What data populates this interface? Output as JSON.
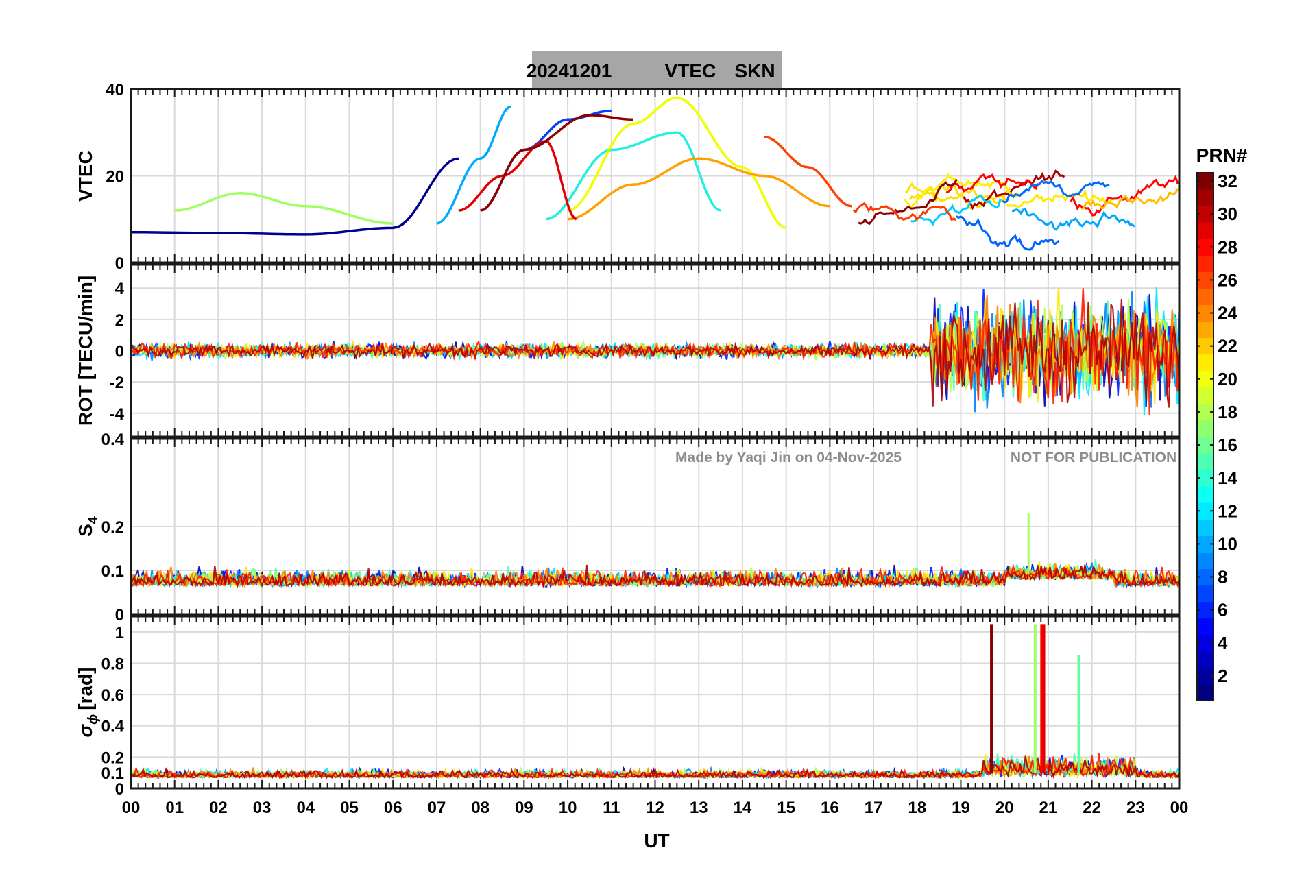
{
  "title": {
    "date": "20241201",
    "product": "VTEC",
    "station": "SKN"
  },
  "watermark": {
    "credit": "Made by Yaqi Jin on 04-Nov-2025",
    "notice": "NOT FOR PUBLICATION"
  },
  "colors": {
    "title_bar": "#a6a6a6",
    "grid": "#d9d9d9",
    "watermark": "#8c8c8c"
  },
  "chart_data": [
    {
      "type": "line",
      "panel": "vtec",
      "ylabel": "VTEC",
      "ylim": [
        0,
        40
      ],
      "yticks": [
        "0",
        "20",
        "40"
      ],
      "ytick_values": [
        0,
        20,
        40
      ],
      "xlim": [
        0,
        24
      ],
      "note": "Multi-satellite VTEC arcs colored by PRN",
      "series": [
        {
          "name": "PRN 2",
          "color": "#00008f",
          "x": [
            0,
            2,
            4,
            6,
            7.5
          ],
          "values": [
            7,
            6.8,
            6.5,
            8,
            24
          ]
        },
        {
          "name": "PRN 6",
          "color": "#0040ff",
          "x": [
            8,
            9,
            10,
            11
          ],
          "values": [
            12,
            26,
            33,
            35
          ]
        },
        {
          "name": "PRN 10",
          "color": "#00aaff",
          "x": [
            7,
            8,
            8.7
          ],
          "values": [
            9,
            24,
            36
          ]
        },
        {
          "name": "PRN 14",
          "color": "#20f0e0",
          "x": [
            9.5,
            11,
            12.5,
            13.5
          ],
          "values": [
            10,
            26,
            30,
            12
          ]
        },
        {
          "name": "PRN 18",
          "color": "#a0ff60",
          "x": [
            1,
            2.5,
            4,
            6
          ],
          "values": [
            12,
            16,
            13,
            9
          ]
        },
        {
          "name": "PRN 20",
          "color": "#f0ff00",
          "x": [
            10,
            11.5,
            12.5,
            14,
            15
          ],
          "values": [
            12,
            32,
            38,
            22,
            8
          ]
        },
        {
          "name": "PRN 23",
          "color": "#ffa000",
          "x": [
            10,
            11.5,
            13,
            14.5,
            16
          ],
          "values": [
            10,
            18,
            24,
            20,
            13
          ]
        },
        {
          "name": "PRN 26",
          "color": "#ff4000",
          "x": [
            14.5,
            15.5,
            16.5
          ],
          "values": [
            29,
            22,
            13
          ]
        },
        {
          "name": "PRN 29",
          "color": "#e00000",
          "x": [
            7.5,
            8.5,
            9.5,
            10.2
          ],
          "values": [
            12,
            20,
            28,
            10
          ]
        },
        {
          "name": "PRN 31",
          "color": "#8f0000",
          "x": [
            8,
            9,
            10.5,
            11.5
          ],
          "values": [
            12,
            26,
            34,
            33
          ]
        }
      ]
    },
    {
      "type": "line",
      "panel": "rot",
      "ylabel": "ROT [TECU/min]",
      "ylim": [
        -5.5,
        5.5
      ],
      "yticks": [
        "-4",
        "-2",
        "0",
        "2",
        "4"
      ],
      "ytick_values": [
        -4,
        -2,
        0,
        2,
        4
      ],
      "xlim": [
        0,
        24
      ],
      "note": "Rate of TEC; enhanced fluctuations after ~18 UT (approx. -4.5 to 5)"
    },
    {
      "type": "line",
      "panel": "s4",
      "ylabel": "S",
      "ylabel_sub": "4",
      "ylim": [
        0,
        0.4
      ],
      "yticks": [
        "0",
        "0.1",
        "0.2",
        "0.4"
      ],
      "ytick_values": [
        0,
        0.1,
        0.2,
        0.4
      ],
      "xlim": [
        0,
        24
      ],
      "note": "Amplitude scintillation index, mostly 0.05–0.1, peak ~0.23 near 20.5 UT"
    },
    {
      "type": "line",
      "panel": "sigma",
      "ylabel": "[rad]",
      "ylabel_symbol": "σ",
      "ylabel_sub": "ϕ",
      "ylim": [
        0,
        1.1
      ],
      "yticks": [
        "0",
        "0.1",
        "0.2",
        "0.4",
        "0.6",
        "0.8",
        "1"
      ],
      "ytick_values": [
        0,
        0.1,
        0.2,
        0.4,
        0.6,
        0.8,
        1
      ],
      "xlim": [
        0,
        24
      ],
      "note": "Phase scintillation index; spikes to ~1 near 19.7 and 20.7–20.9 UT",
      "xlabel": "UT",
      "xticks": [
        "00",
        "01",
        "02",
        "03",
        "04",
        "05",
        "06",
        "07",
        "08",
        "09",
        "10",
        "11",
        "12",
        "13",
        "14",
        "15",
        "16",
        "17",
        "18",
        "19",
        "20",
        "21",
        "22",
        "23",
        "00"
      ]
    }
  ],
  "colorbar": {
    "label": "PRN#",
    "range": [
      1,
      32
    ],
    "ticks": [
      "2",
      "4",
      "6",
      "8",
      "10",
      "12",
      "14",
      "16",
      "18",
      "20",
      "22",
      "24",
      "26",
      "28",
      "30",
      "32"
    ],
    "tick_values": [
      2,
      4,
      6,
      8,
      10,
      12,
      14,
      16,
      18,
      20,
      22,
      24,
      26,
      28,
      30,
      32
    ],
    "colormap": "jet"
  }
}
